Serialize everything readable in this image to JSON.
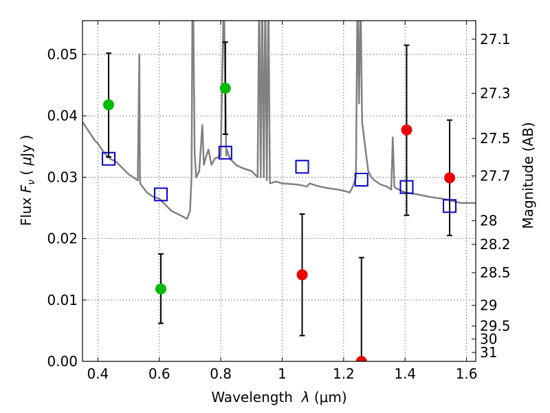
{
  "chart_data": {
    "type": "scatter",
    "x_axis": {
      "label_prefix": "Wavelength  ",
      "label_lambda": "λ",
      "label_unit": " (μm)",
      "lim": [
        0.35,
        1.63
      ],
      "ticks": [
        0.4,
        0.6,
        0.8,
        1.0,
        1.2,
        1.4,
        1.6
      ],
      "tick_labels": [
        "0.4",
        "0.6",
        "0.8",
        "1",
        "1.2",
        "1.4",
        "1.6"
      ]
    },
    "y_axis": {
      "label_prefix": "Flux  ",
      "label_F": "F",
      "label_sub": "ν",
      "label_unit_open": "  ( ",
      "label_mu": "μ",
      "label_unit_rest": "Jy )",
      "lim": [
        0.0,
        0.0555
      ],
      "ticks": [
        0.0,
        0.01,
        0.02,
        0.03,
        0.04,
        0.05
      ],
      "tick_labels": [
        "0.00",
        "0.01",
        "0.02",
        "0.03",
        "0.04",
        "0.05"
      ]
    },
    "y2_axis": {
      "label": "Magnitude (AB)",
      "ticks": [
        27.1,
        27.3,
        27.5,
        27.7,
        28,
        28.2,
        28.5,
        29,
        29.5,
        30,
        31
      ],
      "tick_labels": [
        "27.1",
        "27.3",
        "27.5",
        "27.7",
        "28",
        "28.2",
        "28.5",
        "29",
        "29.5",
        "30",
        "31"
      ]
    },
    "grid": true,
    "colors": {
      "model": "#808080",
      "green": "#00bb00",
      "red": "#ee0000",
      "box": "#0000cc",
      "errorbar": "#000000"
    },
    "model_spectrum": {
      "x": [
        0.35,
        0.37,
        0.39,
        0.4,
        0.42,
        0.44,
        0.46,
        0.48,
        0.5,
        0.52,
        0.53,
        0.535,
        0.537,
        0.54,
        0.56,
        0.58,
        0.6,
        0.62,
        0.64,
        0.66,
        0.68,
        0.69,
        0.7,
        0.705,
        0.708,
        0.71,
        0.715,
        0.72,
        0.73,
        0.74,
        0.745,
        0.75,
        0.76,
        0.77,
        0.78,
        0.8,
        0.81,
        0.818,
        0.82,
        0.83,
        0.85,
        0.87,
        0.9,
        0.92,
        0.925,
        0.93,
        0.935,
        0.94,
        0.945,
        0.95,
        0.955,
        0.96,
        0.98,
        1.0,
        1.05,
        1.08,
        1.09,
        1.1,
        1.12,
        1.15,
        1.18,
        1.2,
        1.22,
        1.23,
        1.24,
        1.245,
        1.25,
        1.255,
        1.26,
        1.27,
        1.28,
        1.29,
        1.3,
        1.32,
        1.34,
        1.355,
        1.36,
        1.365,
        1.37,
        1.38,
        1.4,
        1.44,
        1.48,
        1.52,
        1.55,
        1.58,
        1.6,
        1.63
      ],
      "y": [
        0.039,
        0.0375,
        0.036,
        0.0355,
        0.034,
        0.033,
        0.0325,
        0.0315,
        0.0305,
        0.0298,
        0.0295,
        0.05,
        0.0292,
        0.0288,
        0.0275,
        0.0268,
        0.0265,
        0.0255,
        0.0245,
        0.024,
        0.0235,
        0.0232,
        0.0245,
        0.03,
        0.06,
        0.06,
        0.034,
        0.03,
        0.031,
        0.0385,
        0.032,
        0.033,
        0.0345,
        0.032,
        0.033,
        0.0335,
        0.06,
        0.0335,
        0.0345,
        0.033,
        0.032,
        0.0315,
        0.031,
        0.03,
        0.06,
        0.03,
        0.06,
        0.03,
        0.06,
        0.0295,
        0.06,
        0.029,
        0.0293,
        0.029,
        0.0288,
        0.0285,
        0.029,
        0.0288,
        0.0285,
        0.0282,
        0.028,
        0.0278,
        0.0275,
        0.0285,
        0.03,
        0.06,
        0.042,
        0.06,
        0.039,
        0.035,
        0.031,
        0.03,
        0.0295,
        0.0288,
        0.0285,
        0.028,
        0.0365,
        0.0285,
        0.0282,
        0.028,
        0.0275,
        0.0272,
        0.0268,
        0.0265,
        0.0262,
        0.0258,
        0.0258,
        0.0258
      ]
    },
    "box_points": [
      {
        "x": 0.435,
        "y": 0.033
      },
      {
        "x": 0.605,
        "y": 0.0272
      },
      {
        "x": 0.815,
        "y": 0.034
      },
      {
        "x": 1.065,
        "y": 0.0317
      },
      {
        "x": 1.258,
        "y": 0.0296
      },
      {
        "x": 1.405,
        "y": 0.0284
      },
      {
        "x": 1.545,
        "y": 0.0253
      }
    ],
    "green_points": [
      {
        "x": 0.435,
        "y": 0.0418,
        "err_lo": 0.0333,
        "err_hi": 0.0502
      },
      {
        "x": 0.605,
        "y": 0.0118,
        "err_lo": 0.0062,
        "err_hi": 0.0175
      },
      {
        "x": 0.815,
        "y": 0.0445,
        "err_lo": 0.037,
        "err_hi": 0.052
      }
    ],
    "red_points": [
      {
        "x": 1.065,
        "y": 0.0141,
        "err_lo": 0.0042,
        "err_hi": 0.024
      },
      {
        "x": 1.258,
        "y": 0.0,
        "err_lo": 0.0,
        "err_hi": 0.0169
      },
      {
        "x": 1.405,
        "y": 0.0377,
        "err_lo": 0.0238,
        "err_hi": 0.0515
      },
      {
        "x": 1.545,
        "y": 0.0299,
        "err_lo": 0.0205,
        "err_hi": 0.0393
      }
    ]
  }
}
